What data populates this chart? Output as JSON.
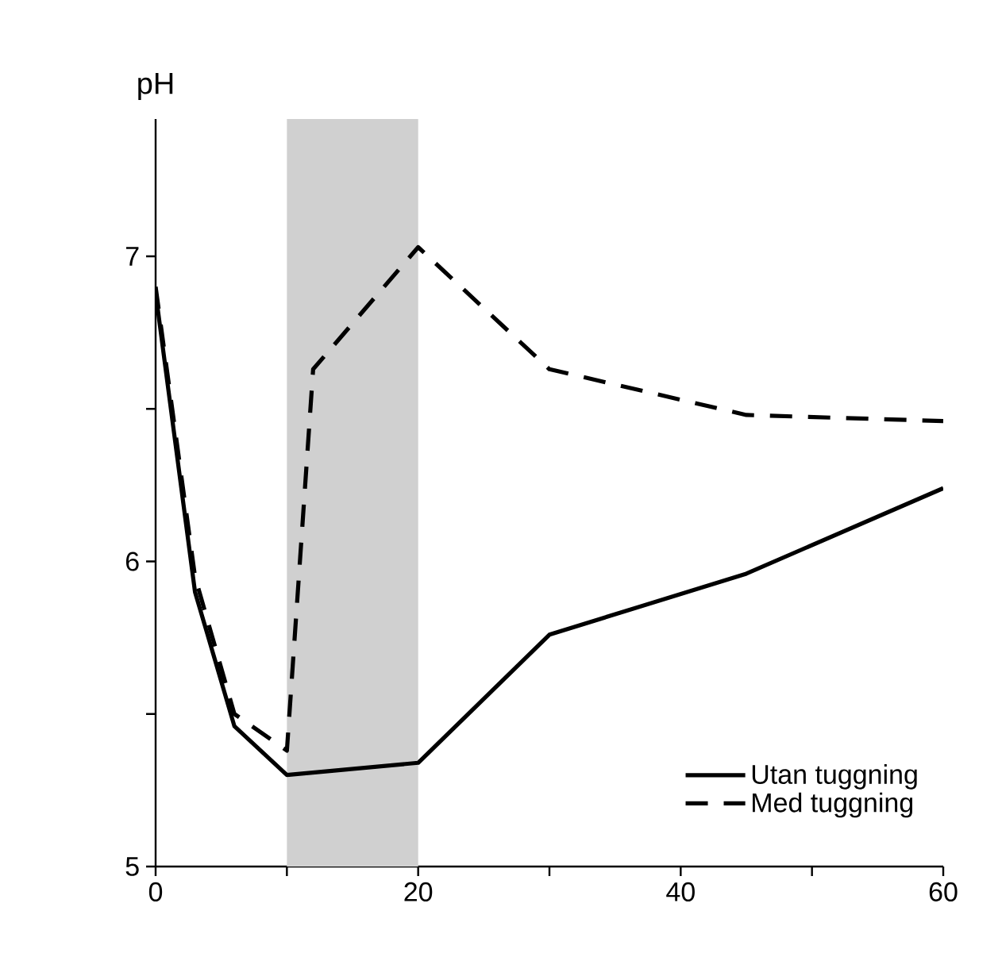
{
  "chart_data": {
    "type": "line",
    "ylabel": "pH",
    "xlim": [
      0,
      60
    ],
    "ylim": [
      5,
      7.45
    ],
    "xticks": [
      0,
      {
        "value": 10,
        "label": null
      },
      20,
      {
        "value": 30,
        "label": null
      },
      40,
      {
        "value": 50,
        "label": null
      },
      60
    ],
    "yticks": [
      5,
      {
        "value": 5.5,
        "label": null
      },
      6,
      {
        "value": 6.5,
        "label": null
      },
      7
    ],
    "bands": [
      {
        "axis": "x",
        "from": 10,
        "to": 20,
        "color": "#d0d0d0"
      }
    ],
    "legend": "bottom right",
    "grid": false,
    "series": [
      {
        "name": "Utan tuggning",
        "color": "#000000",
        "line_style": "solid",
        "x": [
          0,
          3,
          6,
          10,
          20,
          30,
          45,
          60
        ],
        "values": [
          6.88,
          5.9,
          5.46,
          5.3,
          5.34,
          5.76,
          5.96,
          6.24
        ]
      },
      {
        "name": "Med tuggning",
        "color": "#000000",
        "line_style": "dashed",
        "x": [
          0,
          3,
          6,
          10,
          12,
          20,
          30,
          45,
          60
        ],
        "values": [
          6.9,
          5.95,
          5.5,
          5.38,
          6.63,
          7.03,
          6.63,
          6.48,
          6.46
        ]
      }
    ]
  }
}
